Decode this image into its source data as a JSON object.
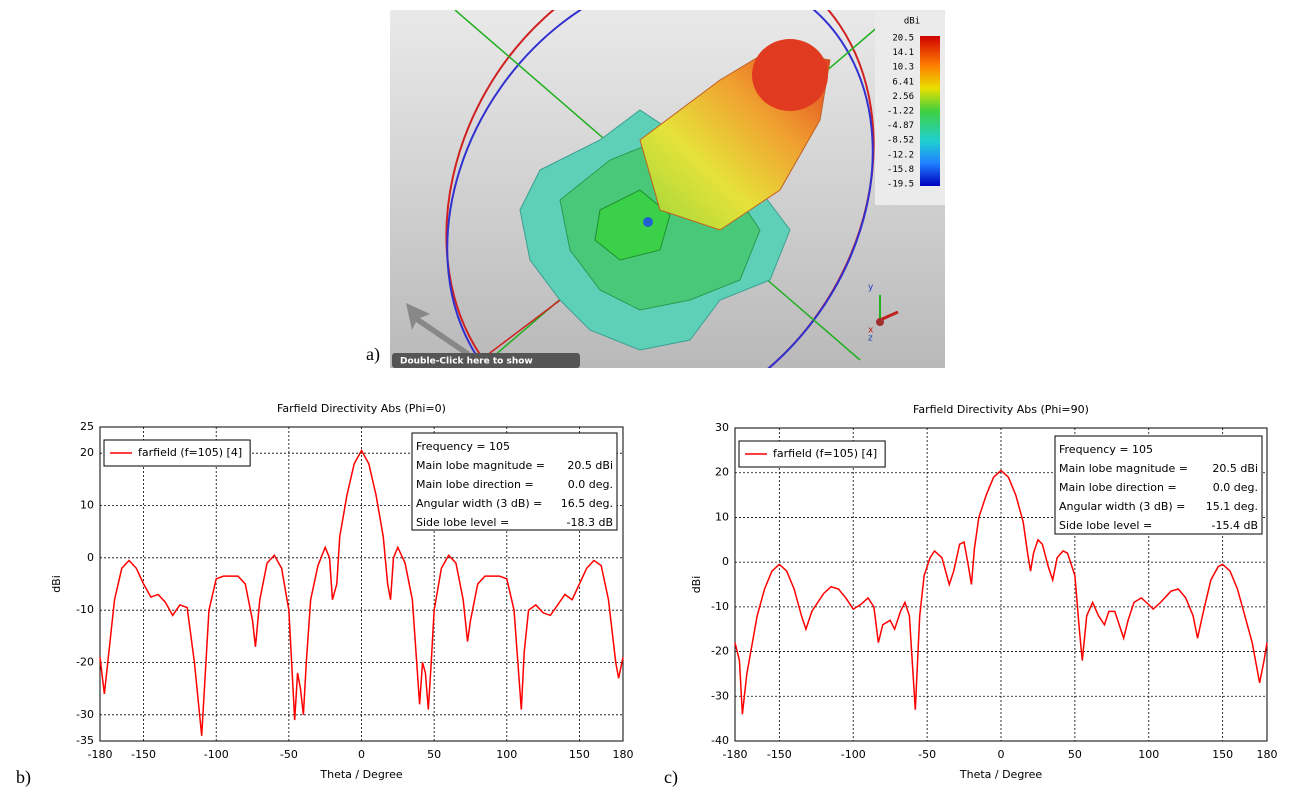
{
  "panels": {
    "a": "a)",
    "b": "b)",
    "c": "c)"
  },
  "render": {
    "colorbar": {
      "title": "dBi",
      "ticks": [
        20.5,
        14.1,
        10.3,
        6.41,
        2.56,
        -1.22,
        -4.87,
        -8.52,
        -12.2,
        -15.8,
        -19.5
      ]
    },
    "banner": "Double-Click here to show",
    "axes": {
      "y": "y",
      "x": "x",
      "z": "z"
    }
  },
  "chart_data": [
    {
      "type": "line",
      "title": "Farfield Directivity Abs (Phi=0)",
      "x_label": "Theta / Degree",
      "y_label": "dBi",
      "x": [
        -180,
        -177,
        -170,
        -165,
        -160,
        -155,
        -150,
        -145,
        -140,
        -135,
        -130,
        -125,
        -120,
        -115,
        -110,
        -105,
        -100,
        -95,
        -85,
        -80,
        -75,
        -73,
        -70,
        -65,
        -60,
        -55,
        -50,
        -46,
        -44,
        -42,
        -40,
        -38,
        -35,
        -30,
        -25,
        -22,
        -20,
        -17,
        -15,
        -10,
        -5,
        0,
        5,
        10,
        15,
        18,
        20,
        22,
        25,
        30,
        35,
        38,
        40,
        42,
        44,
        46,
        48,
        50,
        55,
        60,
        65,
        70,
        73,
        75,
        80,
        85,
        95,
        100,
        105,
        110,
        112,
        115,
        120,
        125,
        130,
        135,
        140,
        145,
        150,
        155,
        160,
        165,
        170,
        175,
        177,
        180
      ],
      "series": [
        {
          "name": "farfield (f=105) [4]",
          "color": "#ff0000",
          "values": [
            -19,
            -26,
            -8,
            -2,
            -0.5,
            -2,
            -5,
            -7.5,
            -7,
            -8.5,
            -11,
            -9,
            -9.5,
            -20,
            -34,
            -10,
            -4,
            -3.5,
            -3.5,
            -5,
            -12,
            -17,
            -8,
            -1,
            0.5,
            -2,
            -10,
            -31,
            -22,
            -25,
            -30,
            -20,
            -8,
            -1.5,
            2,
            0,
            -8,
            -5,
            4,
            12,
            18,
            20.5,
            18,
            12,
            4,
            -5,
            -8,
            0,
            2,
            -1,
            -8,
            -20,
            -28,
            -20,
            -22,
            -29,
            -20,
            -10,
            -2,
            0.5,
            -1,
            -8,
            -16,
            -12,
            -5,
            -3.5,
            -3.5,
            -4,
            -10,
            -29,
            -18,
            -10,
            -9,
            -10.5,
            -11,
            -9,
            -7,
            -8,
            -5,
            -2,
            -0.5,
            -1.5,
            -8,
            -20,
            -23,
            -19
          ]
        }
      ],
      "xlim": [
        -180,
        180
      ],
      "ylim": [
        -35,
        25
      ],
      "xticks": [
        -180,
        -150,
        -100,
        -50,
        0,
        50,
        100,
        150,
        180
      ],
      "yticks": [
        -35,
        -30,
        -20,
        -10,
        0,
        10,
        20,
        25
      ],
      "grid": true,
      "legend": "upper left",
      "info": [
        [
          "Frequency = 105"
        ],
        [
          "Main lobe magnitude =",
          "20.5 dBi"
        ],
        [
          "Main lobe direction =",
          "0.0 deg."
        ],
        [
          "Angular width (3 dB) =",
          "16.5 deg."
        ],
        [
          "Side lobe level =",
          "-18.3 dB"
        ]
      ]
    },
    {
      "type": "line",
      "title": "Farfield Directivity Abs (Phi=90)",
      "x_label": "Theta / Degree",
      "y_label": "dBi",
      "x": [
        -180,
        -177,
        -175,
        -172,
        -165,
        -160,
        -155,
        -150,
        -145,
        -140,
        -135,
        -132,
        -128,
        -120,
        -115,
        -110,
        -105,
        -100,
        -95,
        -90,
        -86,
        -83,
        -80,
        -75,
        -72,
        -68,
        -65,
        -62,
        -58,
        -55,
        -52,
        -48,
        -45,
        -40,
        -35,
        -32,
        -28,
        -25,
        -22,
        -20,
        -18,
        -15,
        -10,
        -5,
        0,
        5,
        10,
        15,
        18,
        20,
        22,
        25,
        28,
        32,
        35,
        38,
        42,
        45,
        50,
        53,
        55,
        58,
        62,
        66,
        70,
        73,
        77,
        80,
        83,
        86,
        90,
        95,
        100,
        103,
        108,
        115,
        120,
        125,
        130,
        133,
        137,
        142,
        147,
        150,
        155,
        160,
        165,
        170,
        175,
        178,
        180
      ],
      "series": [
        {
          "name": "farfield (f=105) [4]",
          "color": "#ff0000",
          "values": [
            -18,
            -22,
            -34,
            -25,
            -12,
            -6,
            -2,
            -0.5,
            -2,
            -6,
            -12,
            -15,
            -11,
            -7,
            -5.5,
            -6,
            -8,
            -10.5,
            -9.5,
            -8,
            -10,
            -18,
            -14,
            -13,
            -15,
            -11,
            -9,
            -12,
            -33,
            -12,
            -3,
            1,
            2.5,
            1,
            -5,
            -2,
            4,
            4.5,
            -1,
            -5,
            3,
            10,
            15,
            19,
            20.5,
            19,
            15,
            9,
            2,
            -2,
            2,
            5,
            4,
            -1,
            -4,
            1,
            2.5,
            2,
            -3,
            -15,
            -22,
            -12,
            -9,
            -12,
            -14,
            -11,
            -11,
            -14,
            -17,
            -13,
            -9,
            -8,
            -9.5,
            -10.5,
            -9,
            -6.5,
            -6,
            -8,
            -12,
            -17,
            -11,
            -4,
            -1,
            -0.5,
            -2,
            -6,
            -12,
            -18,
            -27,
            -22,
            -18
          ]
        }
      ],
      "xlim": [
        -180,
        180
      ],
      "ylim": [
        -40,
        30
      ],
      "xticks": [
        -180,
        -150,
        -100,
        -50,
        0,
        50,
        100,
        150,
        180
      ],
      "yticks": [
        -40,
        -30,
        -20,
        -10,
        0,
        10,
        20,
        30
      ],
      "grid": true,
      "legend": "upper left",
      "info": [
        [
          "Frequency = 105"
        ],
        [
          "Main lobe magnitude =",
          "20.5 dBi"
        ],
        [
          "Main lobe direction =",
          "0.0 deg."
        ],
        [
          "Angular width (3 dB) =",
          "15.1 deg."
        ],
        [
          "Side lobe level =",
          "-15.4 dB"
        ]
      ]
    }
  ]
}
